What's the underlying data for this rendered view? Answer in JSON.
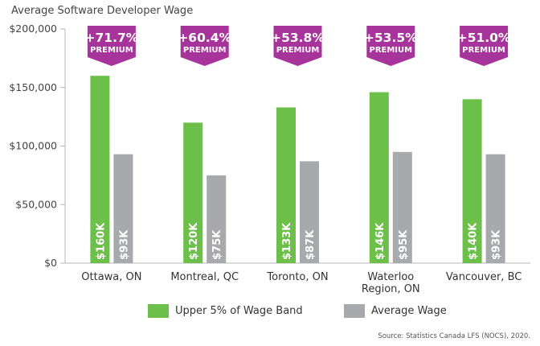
{
  "title": "Average Software Developer Wage",
  "source": "Source: Statistics Canada LFS (NOCS), 2020.",
  "colors": {
    "upper": "#6cc04a",
    "average": "#a7a9ac",
    "banner": "#a7349b",
    "axis": "#b5b5b5"
  },
  "chart_data": {
    "type": "bar",
    "title": "Average Software Developer Wage",
    "ylim": [
      0,
      200000
    ],
    "yticks": [
      0,
      50000,
      100000,
      150000,
      200000
    ],
    "ytick_labels": [
      "$0",
      "$50,000",
      "$100,000",
      "$150,000",
      "$200,000"
    ],
    "categories": [
      "Ottawa, ON",
      "Montreal, QC",
      "Toronto, ON",
      "Waterloo Region, ON",
      "Vancouver, BC"
    ],
    "category_lines": [
      [
        "Ottawa, ON"
      ],
      [
        "Montreal, QC"
      ],
      [
        "Toronto, ON"
      ],
      [
        "Waterloo",
        "Region, ON"
      ],
      [
        "Vancouver, BC"
      ]
    ],
    "series": [
      {
        "name": "Upper 5% of Wage Band",
        "values": [
          160000,
          120000,
          133000,
          146000,
          140000
        ],
        "labels": [
          "$160K",
          "$120K",
          "$133K",
          "$146K",
          "$140K"
        ]
      },
      {
        "name": "Average Wage",
        "values": [
          93000,
          75000,
          87000,
          95000,
          93000
        ],
        "labels": [
          "$93K",
          "$75K",
          "$87K",
          "$95K",
          "$93K"
        ]
      }
    ],
    "premiums": [
      "+71.7%",
      "+60.4%",
      "+53.8%",
      "+53.5%",
      "+51.0%"
    ],
    "premium_label": "PREMIUM",
    "grid": false,
    "legend_position": "bottom"
  }
}
